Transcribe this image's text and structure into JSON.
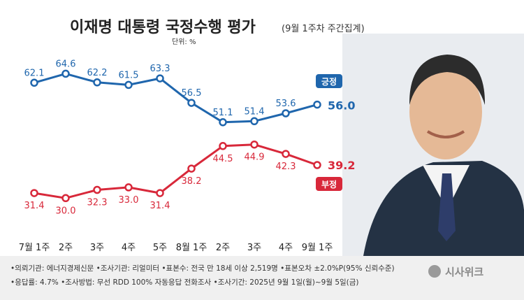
{
  "chart_data": {
    "type": "line",
    "title": "이재명 대통령 국정수행 평가",
    "subtitle": "(9월 1주차 주간집계)",
    "unit_label": "단위: %",
    "categories": [
      "7월 1주",
      "2주",
      "3주",
      "4주",
      "5주",
      "8월 1주",
      "2주",
      "3주",
      "4주",
      "9월 1주"
    ],
    "series": [
      {
        "name": "긍정",
        "color": "#1f66ad",
        "values": [
          62.1,
          64.6,
          62.2,
          61.5,
          63.3,
          56.5,
          51.1,
          51.4,
          53.6,
          56.0
        ],
        "labels": [
          "62.1",
          "64.6",
          "62.2",
          "61.5",
          "63.3",
          "56.5",
          "51.1",
          "51.4",
          "53.6",
          "56.0"
        ]
      },
      {
        "name": "부정",
        "color": "#d8283a",
        "values": [
          31.4,
          30.0,
          32.3,
          33.0,
          31.4,
          38.2,
          44.5,
          44.9,
          42.3,
          39.2
        ],
        "labels": [
          "31.4",
          "30.0",
          "32.3",
          "33.0",
          "31.4",
          "38.2",
          "44.5",
          "44.9",
          "42.3",
          "39.2"
        ]
      }
    ]
  },
  "footnotes": [
    [
      "의뢰기관: 에너지경제신문",
      "조사기관: 리얼미터",
      "표본수: 전국 만 18세 이상 2,519명",
      "표본오차 ±2.0%P(95% 신뢰수준)"
    ],
    [
      "응답률: 4.7%",
      "조사방법: 무선 RDD 100% 자동응답 전화조사",
      "조사기간: 2025년 9월 1일(월)~9월 5일(금)"
    ]
  ],
  "logo_text": "시사위크"
}
